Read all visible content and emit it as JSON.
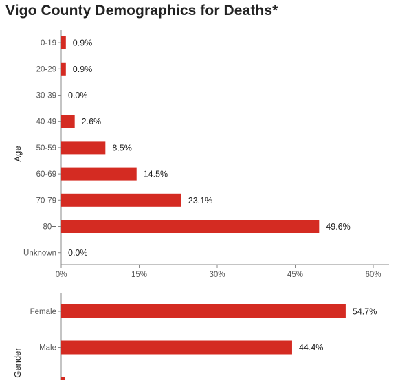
{
  "title": "Vigo County Demographics for Deaths*",
  "bar_color": "#d42b22",
  "chart_data": [
    {
      "type": "bar",
      "orientation": "horizontal",
      "ylabel": "Age",
      "categories": [
        "0-19",
        "20-29",
        "30-39",
        "40-49",
        "50-59",
        "60-69",
        "70-79",
        "80+",
        "Unknown"
      ],
      "values": [
        0.9,
        0.9,
        0.0,
        2.6,
        8.5,
        14.5,
        23.1,
        49.6,
        0.0
      ],
      "value_labels": [
        "0.9%",
        "0.9%",
        "0.0%",
        "2.6%",
        "8.5%",
        "14.5%",
        "23.1%",
        "49.6%",
        "0.0%"
      ],
      "xlim": [
        0,
        60
      ],
      "xticks": [
        0,
        15,
        30,
        45,
        60
      ],
      "xtick_labels": [
        "0%",
        "15%",
        "30%",
        "45%",
        "60%"
      ]
    },
    {
      "type": "bar",
      "orientation": "horizontal",
      "ylabel": "Gender",
      "categories": [
        "Female",
        "Male"
      ],
      "values": [
        54.7,
        44.4
      ],
      "value_labels": [
        "54.7%",
        "44.4%"
      ],
      "xlim": [
        0,
        60
      ]
    }
  ]
}
